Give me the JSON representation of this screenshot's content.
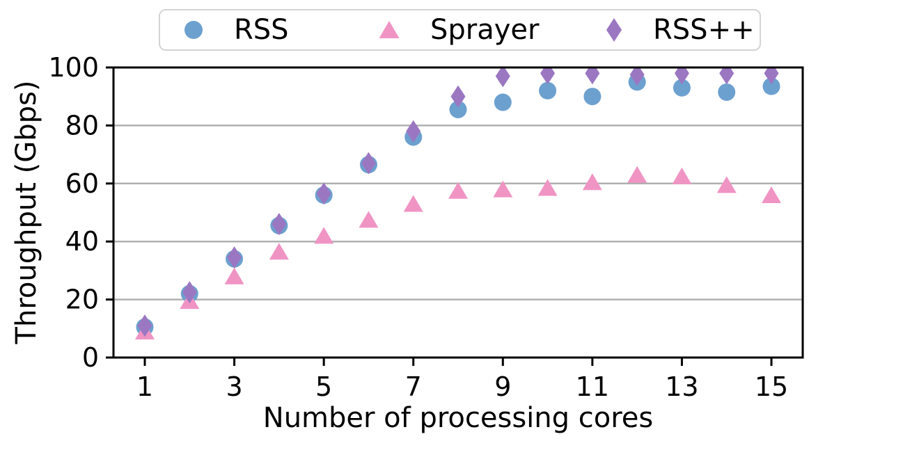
{
  "figure": {
    "background": "#ffffff",
    "text_color": "#000000",
    "spine_color": "#000000",
    "grid_color": "#b0b0b0",
    "legend_border_color": "#d4d4d4"
  },
  "chart_data": {
    "type": "scatter",
    "title": "",
    "xlabel": "Number of processing cores",
    "ylabel": "Throughput (Gbps)",
    "xlim": [
      0.3,
      15.7
    ],
    "ylim": [
      0,
      100
    ],
    "x_ticks": [
      1,
      3,
      5,
      7,
      9,
      11,
      13,
      15
    ],
    "y_ticks": [
      0,
      20,
      40,
      60,
      80,
      100
    ],
    "grid": "horizontal",
    "legend_position": "top-center",
    "x": [
      1,
      2,
      3,
      4,
      5,
      6,
      7,
      8,
      9,
      10,
      11,
      12,
      13,
      14,
      15
    ],
    "series": [
      {
        "name": "RSS",
        "marker": "circle",
        "color": "#6CA0CF",
        "values": [
          10.5,
          22,
          34,
          45.5,
          56,
          66.5,
          76,
          85.5,
          88,
          92,
          90,
          95,
          93,
          91.5,
          93.5
        ]
      },
      {
        "name": "Sprayer",
        "marker": "triangle",
        "color": "#F094C4",
        "values": [
          9,
          19.5,
          28,
          36.5,
          42,
          47.5,
          53,
          57.5,
          58,
          58.5,
          60.5,
          63,
          62.5,
          59.5,
          56
        ]
      },
      {
        "name": "RSS++",
        "marker": "diamond",
        "color": "#9B77C2",
        "values": [
          11,
          22.5,
          34.5,
          46,
          56.5,
          67,
          78,
          90,
          97,
          98,
          98,
          97.5,
          98,
          98,
          98
        ]
      }
    ]
  }
}
